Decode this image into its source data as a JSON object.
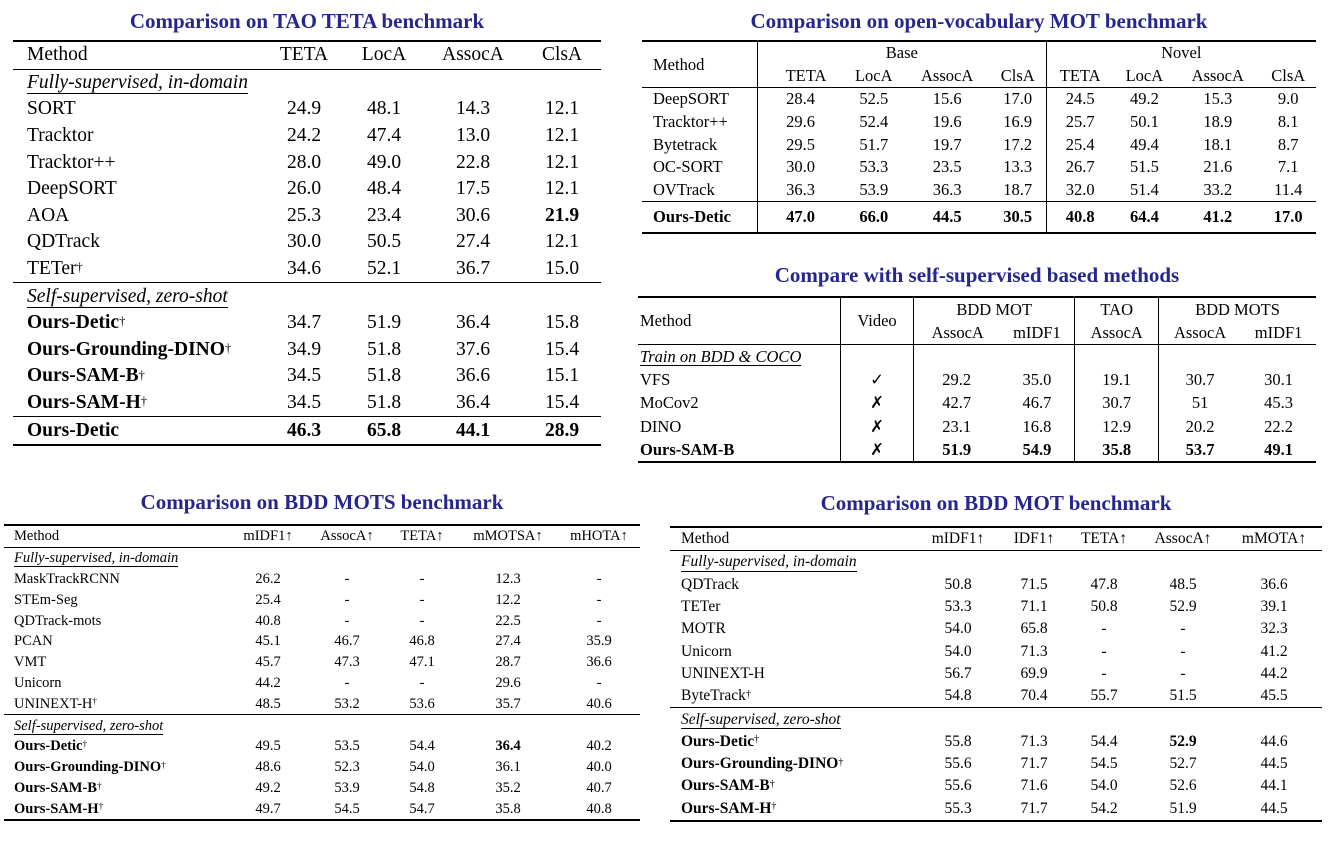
{
  "panels": [
    {
      "title": "Comparison on TAO TETA benchmark",
      "columns": [
        "Method",
        "TETA",
        "LocA",
        "AssocA",
        "ClsA"
      ],
      "groups": [
        {
          "label": "Fully-supervised, in-domain",
          "rows": [
            {
              "method": "SORT",
              "values": [
                "24.9",
                "48.1",
                "14.3",
                "12.1"
              ]
            },
            {
              "method": "Tracktor",
              "values": [
                "24.2",
                "47.4",
                "13.0",
                "12.1"
              ]
            },
            {
              "method": "Tracktor++",
              "values": [
                "28.0",
                "49.0",
                "22.8",
                "12.1"
              ]
            },
            {
              "method": "DeepSORT",
              "values": [
                "26.0",
                "48.4",
                "17.5",
                "12.1"
              ]
            },
            {
              "method": "AOA",
              "values": [
                "25.3",
                "23.4",
                "30.6",
                "21.9"
              ],
              "bold_cells": [
                3
              ]
            },
            {
              "method": "QDTrack",
              "values": [
                "30.0",
                "50.5",
                "27.4",
                "12.1"
              ]
            },
            {
              "method": "TETer",
              "sup": "†",
              "values": [
                "34.6",
                "52.1",
                "36.7",
                "15.0"
              ]
            }
          ]
        },
        {
          "label": "Self-supervised, zero-shot",
          "rows": [
            {
              "method": "Ours-Detic",
              "sup": "†",
              "bold_method": true,
              "values": [
                "34.7",
                "51.9",
                "36.4",
                "15.8"
              ]
            },
            {
              "method": "Ours-Grounding-DINO",
              "sup": "†",
              "bold_method": true,
              "values": [
                "34.9",
                "51.8",
                "37.6",
                "15.4"
              ]
            },
            {
              "method": "Ours-SAM-B",
              "sup": "†",
              "bold_method": true,
              "values": [
                "34.5",
                "51.8",
                "36.6",
                "15.1"
              ]
            },
            {
              "method": "Ours-SAM-H",
              "sup": "†",
              "bold_method": true,
              "values": [
                "34.5",
                "51.8",
                "36.4",
                "15.4"
              ]
            }
          ]
        },
        {
          "label": null,
          "rows": [
            {
              "method": "Ours-Detic",
              "bold_method": true,
              "bold_all": true,
              "values": [
                "46.3",
                "65.8",
                "44.1",
                "28.9"
              ]
            }
          ]
        }
      ]
    },
    {
      "title": "Comparison on open-vocabulary MOT benchmark",
      "method_header": "Method",
      "group_headers": [
        "Base",
        "Novel"
      ],
      "subcolumns": [
        "TETA",
        "LocA",
        "AssocA",
        "ClsA",
        "TETA",
        "LocA",
        "AssocA",
        "ClsA"
      ],
      "rows": [
        {
          "method": "DeepSORT",
          "values": [
            "28.4",
            "52.5",
            "15.6",
            "17.0",
            "24.5",
            "49.2",
            "15.3",
            "9.0"
          ]
        },
        {
          "method": "Tracktor++",
          "values": [
            "29.6",
            "52.4",
            "19.6",
            "16.9",
            "25.7",
            "50.1",
            "18.9",
            "8.1"
          ]
        },
        {
          "method": "Bytetrack",
          "values": [
            "29.5",
            "51.7",
            "19.7",
            "17.2",
            "25.4",
            "49.4",
            "18.1",
            "8.7"
          ]
        },
        {
          "method": "OC-SORT",
          "values": [
            "30.0",
            "53.3",
            "23.5",
            "13.3",
            "26.7",
            "51.5",
            "21.6",
            "7.1"
          ]
        },
        {
          "method": "OVTrack",
          "values": [
            "36.3",
            "53.9",
            "36.3",
            "18.7",
            "32.0",
            "51.4",
            "33.2",
            "11.4"
          ]
        }
      ],
      "final_row": {
        "method": "Ours-Detic",
        "values": [
          "47.0",
          "66.0",
          "44.5",
          "30.5",
          "40.8",
          "64.4",
          "41.2",
          "17.0"
        ]
      }
    },
    {
      "title": "Compare with self-supervised based methods",
      "method_header": "Method",
      "video_header": "Video",
      "group_headers": [
        "BDD MOT",
        "TAO",
        "BDD MOTS"
      ],
      "subcolumns": [
        "AssocA",
        "mIDF1",
        "AssocA",
        "AssocA",
        "mIDF1"
      ],
      "group_label": "Train on BDD & COCO",
      "rows": [
        {
          "method": "VFS",
          "video": "✓",
          "values": [
            "29.2",
            "35.0",
            "19.1",
            "30.7",
            "30.1"
          ]
        },
        {
          "method": "MoCov2",
          "video": "✗",
          "values": [
            "42.7",
            "46.7",
            "30.7",
            "51",
            "45.3"
          ]
        },
        {
          "method": "DINO",
          "video": "✗",
          "values": [
            "23.1",
            "16.8",
            "12.9",
            "20.2",
            "22.2"
          ]
        },
        {
          "method": "Ours-SAM-B",
          "video": "✗",
          "bold_all": true,
          "values": [
            "51.9",
            "54.9",
            "35.8",
            "53.7",
            "49.1"
          ]
        }
      ]
    },
    {
      "title": "Comparison on BDD MOTS benchmark",
      "columns": [
        "Method",
        "mIDF1↑",
        "AssocA↑",
        "TETA↑",
        "mMOTSA↑",
        "mHOTA↑"
      ],
      "groups": [
        {
          "label": "Fully-supervised, in-domain",
          "rows": [
            {
              "method": "MaskTrackRCNN",
              "values": [
                "26.2",
                "-",
                "-",
                "12.3",
                "-"
              ]
            },
            {
              "method": "STEm-Seg",
              "values": [
                "25.4",
                "-",
                "-",
                "12.2",
                "-"
              ]
            },
            {
              "method": "QDTrack-mots",
              "values": [
                "40.8",
                "-",
                "-",
                "22.5",
                "-"
              ]
            },
            {
              "method": "PCAN",
              "values": [
                "45.1",
                "46.7",
                "46.8",
                "27.4",
                "35.9"
              ]
            },
            {
              "method": "VMT",
              "values": [
                "45.7",
                "47.3",
                "47.1",
                "28.7",
                "36.6"
              ]
            },
            {
              "method": "Unicorn",
              "values": [
                "44.2",
                "-",
                "-",
                "29.6",
                "-"
              ]
            },
            {
              "method": "UNINEXT-H",
              "sup": "†",
              "values": [
                "48.5",
                "53.2",
                "53.6",
                "35.7",
                "40.6"
              ]
            }
          ]
        },
        {
          "label": "Self-supervised, zero-shot",
          "rows": [
            {
              "method": "Ours-Detic",
              "sup": "†",
              "bold_method": true,
              "values": [
                "49.5",
                "53.5",
                "54.4",
                "36.4",
                "40.2"
              ],
              "bold_cells": [
                3
              ]
            },
            {
              "method": "Ours-Grounding-DINO",
              "sup": "†",
              "bold_method": true,
              "values": [
                "48.6",
                "52.3",
                "54.0",
                "36.1",
                "40.0"
              ]
            },
            {
              "method": "Ours-SAM-B",
              "sup": "†",
              "bold_method": true,
              "values": [
                "49.2",
                "53.9",
                "54.8",
                "35.2",
                "40.7"
              ]
            },
            {
              "method": "Ours-SAM-H",
              "sup": "†",
              "bold_method": true,
              "values": [
                "49.7",
                "54.5",
                "54.7",
                "35.8",
                "40.8"
              ]
            }
          ]
        }
      ]
    },
    {
      "title": "Comparison on BDD MOT benchmark",
      "columns": [
        "Method",
        "mIDF1↑",
        "IDF1↑",
        "TETA↑",
        "AssocA↑",
        "mMOTA↑"
      ],
      "groups": [
        {
          "label": "Fully-supervised, in-domain",
          "rows": [
            {
              "method": "QDTrack",
              "values": [
                "50.8",
                "71.5",
                "47.8",
                "48.5",
                "36.6"
              ]
            },
            {
              "method": "TETer",
              "values": [
                "53.3",
                "71.1",
                "50.8",
                "52.9",
                "39.1"
              ]
            },
            {
              "method": "MOTR",
              "values": [
                "54.0",
                "65.8",
                "-",
                "-",
                "32.3"
              ]
            },
            {
              "method": "Unicorn",
              "values": [
                "54.0",
                "71.3",
                "-",
                "-",
                "41.2"
              ]
            },
            {
              "method": "UNINEXT-H",
              "values": [
                "56.7",
                "69.9",
                "-",
                "-",
                "44.2"
              ]
            },
            {
              "method": "ByteTrack",
              "sup": "†",
              "values": [
                "54.8",
                "70.4",
                "55.7",
                "51.5",
                "45.5"
              ]
            }
          ]
        },
        {
          "label": "Self-supervised, zero-shot",
          "rows": [
            {
              "method": "Ours-Detic",
              "sup": "†",
              "bold_method": true,
              "values": [
                "55.8",
                "71.3",
                "54.4",
                "52.9",
                "44.6"
              ],
              "bold_cells": [
                3
              ]
            },
            {
              "method": "Ours-Grounding-DINO",
              "sup": "†",
              "bold_method": true,
              "values": [
                "55.6",
                "71.7",
                "54.5",
                "52.7",
                "44.5"
              ]
            },
            {
              "method": "Ours-SAM-B",
              "sup": "†",
              "bold_method": true,
              "values": [
                "55.6",
                "71.6",
                "54.0",
                "52.6",
                "44.1"
              ]
            },
            {
              "method": "Ours-SAM-H",
              "sup": "†",
              "bold_method": true,
              "values": [
                "55.3",
                "71.7",
                "54.2",
                "51.9",
                "44.5"
              ]
            }
          ]
        }
      ]
    }
  ]
}
